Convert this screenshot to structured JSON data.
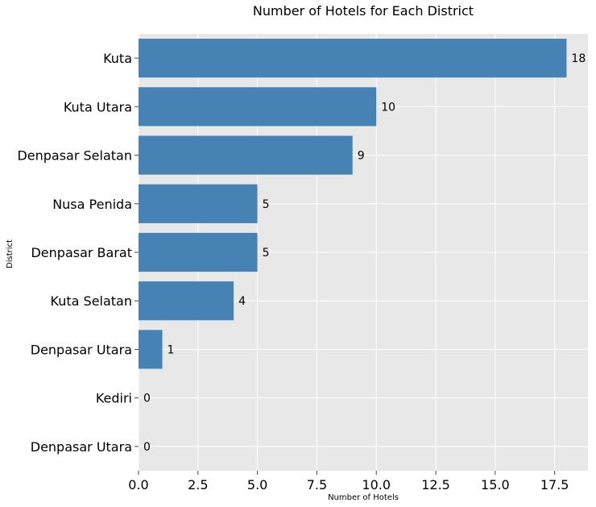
{
  "chart_data": {
    "type": "bar",
    "orientation": "horizontal",
    "title": "Number of Hotels for Each District",
    "xlabel": "Number of Hotels",
    "ylabel": "District",
    "categories": [
      "Kuta",
      "Kuta Utara",
      "Denpasar Selatan",
      "Nusa Penida",
      "Denpasar Barat",
      "Kuta Selatan",
      "Denpasar Utara",
      "Kediri",
      "Denpasar Utara"
    ],
    "values": [
      18,
      10,
      9,
      5,
      5,
      4,
      1,
      0,
      0
    ],
    "xlim": [
      0,
      18.9
    ],
    "xticks": [
      "0.0",
      "2.5",
      "5.0",
      "7.5",
      "10.0",
      "12.5",
      "15.0",
      "17.5"
    ],
    "grid": true,
    "bar_color": "#4682b4",
    "background_color": "#e8e8e8",
    "grid_color": "#ffffff"
  }
}
